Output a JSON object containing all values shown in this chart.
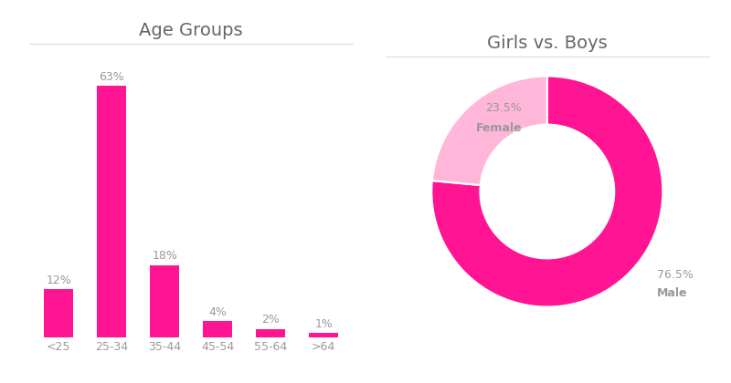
{
  "bar_categories": [
    "<25",
    "25-34",
    "35-44",
    "45-54",
    "55-64",
    ">64"
  ],
  "bar_values": [
    12,
    63,
    18,
    4,
    2,
    1
  ],
  "bar_color": "#FF1493",
  "bar_title": "Age Groups",
  "pie_values": [
    76.5,
    23.5
  ],
  "pie_labels": [
    "Male",
    "Female"
  ],
  "pie_colors": [
    "#FF1493",
    "#FFB6D9"
  ],
  "pie_title": "Girls vs. Boys",
  "label_color": "#999999",
  "title_color": "#666666",
  "background_color": "#ffffff",
  "bar_label_fontsize": 9,
  "title_fontsize": 14,
  "tick_fontsize": 9,
  "separator_color": "#dddddd"
}
